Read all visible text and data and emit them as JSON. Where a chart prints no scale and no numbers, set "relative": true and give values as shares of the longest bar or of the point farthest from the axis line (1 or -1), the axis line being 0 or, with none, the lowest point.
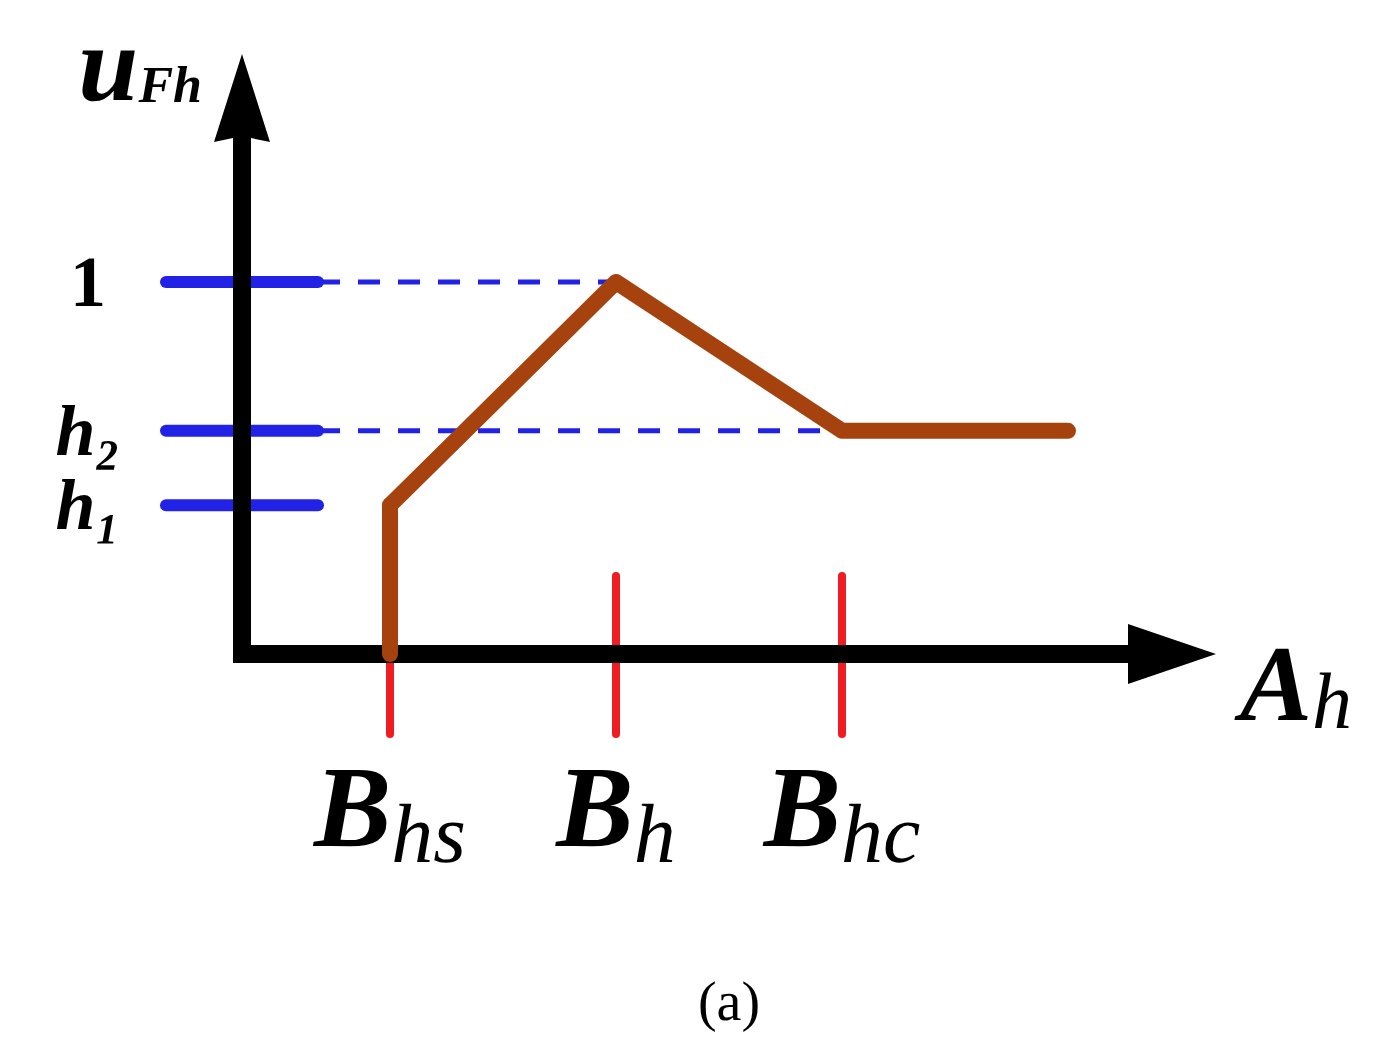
{
  "chart_data": {
    "type": "line",
    "relative": true,
    "xlabel": "A$_{h}$",
    "ylabel": "u$_{Fh}$",
    "categories": [
      "B$_{hs}$",
      "B$_{h}$",
      "B$_{hc}$",
      null
    ],
    "series": [
      {
        "color": "#a5420e",
        "values": [
          0.4,
          1,
          0.6,
          0.6
        ]
      },
      {
        "color": "#a5420e",
        "x": [
          "B$_{hs}$",
          "B$_{hs}$"
        ],
        "values": [
          0,
          0.4
        ]
      }
    ],
    "ref_lines": [
      {
        "axis": "y",
        "value": 1,
        "label": "1",
        "color": "#2222e6",
        "line_style": "dashed"
      },
      {
        "axis": "y",
        "value": 0.6,
        "label": "h₂",
        "color": "#2222e6",
        "line_style": "dashed"
      },
      {
        "axis": "y",
        "value": 0.4,
        "label": "h₁",
        "color": "#2222e6"
      }
    ],
    "annotations": [
      "(a)"
    ]
  }
}
